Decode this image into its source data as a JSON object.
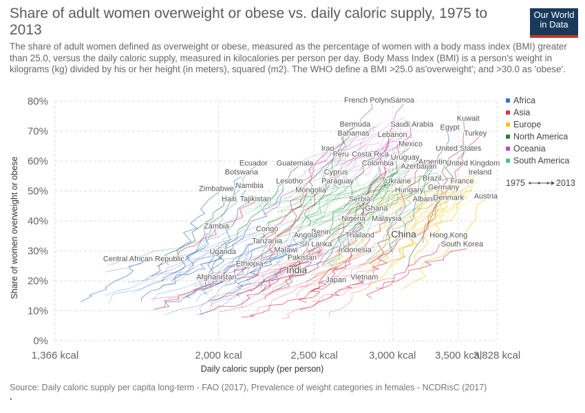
{
  "header": {
    "title": "Share of adult women overweight or obese vs. daily caloric supply, 1975 to 2013",
    "subtitle": "The share of adult women defined as overweight or obese, measured as the percentage of women with a body mass index (BMI) greater than 25.0, versus the daily caloric supply, measured in kilocalories per person per day. Body Mass Index (BMI) is a person's weight in kilograms (kg) divided by his or her height (in meters), squared (m2). The WHO define a BMI >25.0 as'overweight'; and >30.0 as 'obese'.",
    "logo_line1": "Our World",
    "logo_line2": "in Data"
  },
  "footer": {
    "source": "Source: Daily caloric supply per capita long-term - FAO (2017), Prevalence of weight categories in females - NCDRisC (2017)",
    "note": "•"
  },
  "chart_data": {
    "type": "line",
    "title": "Share of adult women overweight or obese vs. daily caloric supply, 1975 to 2013",
    "xlabel": "Daily caloric supply (per person)",
    "ylabel": "Share of women overweight or obese",
    "x_log_scale": true,
    "xlim": [
      1366,
      3828
    ],
    "ylim": [
      0,
      80
    ],
    "x_ticks": [
      {
        "value": 1366,
        "label": "1,366 kcal"
      },
      {
        "value": 2000,
        "label": "2,000 kcal"
      },
      {
        "value": 2500,
        "label": "2,500 kcal"
      },
      {
        "value": 3000,
        "label": "3,000 kcal"
      },
      {
        "value": 3500,
        "label": "3,500 kcal"
      },
      {
        "value": 3828,
        "label": "3,828 kcal"
      }
    ],
    "y_ticks": [
      {
        "value": 0,
        "label": "0%"
      },
      {
        "value": 10,
        "label": "10%"
      },
      {
        "value": 20,
        "label": "20%"
      },
      {
        "value": 30,
        "label": "30%"
      },
      {
        "value": 40,
        "label": "40%"
      },
      {
        "value": 50,
        "label": "50%"
      },
      {
        "value": 60,
        "label": "60%"
      },
      {
        "value": 70,
        "label": "70%"
      },
      {
        "value": 80,
        "label": "80%"
      }
    ],
    "grid": true,
    "legend_placement": "right",
    "legend": [
      {
        "name": "Africa",
        "color": "#3b6fc4"
      },
      {
        "name": "Asia",
        "color": "#d9314f"
      },
      {
        "name": "Europe",
        "color": "#f5c518"
      },
      {
        "name": "North America",
        "color": "#2e7d3a"
      },
      {
        "name": "Oceania",
        "color": "#b84fc7"
      },
      {
        "name": "South America",
        "color": "#4dc27a"
      }
    ],
    "time_legend": {
      "start": "1975",
      "end": "2013"
    },
    "country_labels": [
      {
        "name": "French Polynesia",
        "x": 2870,
        "y": 79.5,
        "region": "Oceania"
      },
      {
        "name": "Samoa",
        "x": 3070,
        "y": 79.5,
        "region": "Oceania"
      },
      {
        "name": "Kuwait",
        "x": 3580,
        "y": 73.5,
        "region": "Asia"
      },
      {
        "name": "Bermuda",
        "x": 2750,
        "y": 71.5,
        "region": "North America"
      },
      {
        "name": "Saudi Arabia",
        "x": 3140,
        "y": 71.5,
        "region": "Asia"
      },
      {
        "name": "Egypt",
        "x": 3430,
        "y": 70.5,
        "region": "Africa"
      },
      {
        "name": "Bahamas",
        "x": 2740,
        "y": 68.5,
        "region": "North America"
      },
      {
        "name": "Lebanon",
        "x": 3000,
        "y": 68.0,
        "region": "Asia"
      },
      {
        "name": "Turkey",
        "x": 3640,
        "y": 68.5,
        "region": "Asia"
      },
      {
        "name": "Mexico",
        "x": 3130,
        "y": 65.0,
        "region": "North America"
      },
      {
        "name": "Iraq",
        "x": 2580,
        "y": 63.5,
        "region": "Asia"
      },
      {
        "name": "United States",
        "x": 3500,
        "y": 63.5,
        "region": "North America"
      },
      {
        "name": "Peru",
        "x": 2660,
        "y": 61.5,
        "region": "South America"
      },
      {
        "name": "Costa Rica",
        "x": 2850,
        "y": 61.5,
        "region": "North America"
      },
      {
        "name": "Uruguay",
        "x": 3090,
        "y": 60.5,
        "region": "South America"
      },
      {
        "name": "Ecuador",
        "x": 2170,
        "y": 58.5,
        "region": "South America"
      },
      {
        "name": "Guatemala",
        "x": 2390,
        "y": 58.5,
        "region": "North America"
      },
      {
        "name": "Colombia",
        "x": 2900,
        "y": 58.5,
        "region": "South America"
      },
      {
        "name": "Argentina",
        "x": 3310,
        "y": 59.0,
        "region": "South America"
      },
      {
        "name": "United Kingdom",
        "x": 3620,
        "y": 58.5,
        "region": "Europe"
      },
      {
        "name": "Azerbaijan",
        "x": 3190,
        "y": 57.5,
        "region": "Asia"
      },
      {
        "name": "Botswana",
        "x": 2110,
        "y": 55.5,
        "region": "Africa"
      },
      {
        "name": "Cyprus",
        "x": 2630,
        "y": 55.5,
        "region": "Asia"
      },
      {
        "name": "Ireland",
        "x": 3680,
        "y": 55.5,
        "region": "Europe"
      },
      {
        "name": "Lesotho",
        "x": 2360,
        "y": 52.5,
        "region": "Africa"
      },
      {
        "name": "Paraguay",
        "x": 2640,
        "y": 52.5,
        "region": "South America"
      },
      {
        "name": "Ukraine",
        "x": 3040,
        "y": 52.5,
        "region": "Europe"
      },
      {
        "name": "Brazil",
        "x": 3290,
        "y": 53.5,
        "region": "South America"
      },
      {
        "name": "France",
        "x": 3530,
        "y": 52.5,
        "region": "Europe"
      },
      {
        "name": "Namibia",
        "x": 2150,
        "y": 51.0,
        "region": "Africa"
      },
      {
        "name": "Zimbabwe",
        "x": 1990,
        "y": 50.0,
        "region": "Africa"
      },
      {
        "name": "Mongolia",
        "x": 2480,
        "y": 49.5,
        "region": "Asia"
      },
      {
        "name": "Hungary",
        "x": 3120,
        "y": 49.5,
        "region": "Europe"
      },
      {
        "name": "Germany",
        "x": 3380,
        "y": 50.5,
        "region": "Europe"
      },
      {
        "name": "Austria",
        "x": 3730,
        "y": 47.5,
        "region": "Europe"
      },
      {
        "name": "Haiti",
        "x": 2050,
        "y": 46.5,
        "region": "North America"
      },
      {
        "name": "Tajikistan",
        "x": 2180,
        "y": 46.5,
        "region": "Asia"
      },
      {
        "name": "Serbia",
        "x": 2780,
        "y": 46.5,
        "region": "Europe"
      },
      {
        "name": "Albania",
        "x": 3240,
        "y": 46.5,
        "region": "Europe"
      },
      {
        "name": "Denmark",
        "x": 3420,
        "y": 47.0,
        "region": "Europe"
      },
      {
        "name": "Ghana",
        "x": 2890,
        "y": 43.5,
        "region": "Africa"
      },
      {
        "name": "Nigeria",
        "x": 2740,
        "y": 40.0,
        "region": "Africa"
      },
      {
        "name": "Malaysia",
        "x": 2960,
        "y": 40.0,
        "region": "Asia"
      },
      {
        "name": "Zambia",
        "x": 1990,
        "y": 37.5,
        "region": "Africa"
      },
      {
        "name": "Congo",
        "x": 2240,
        "y": 36.5,
        "region": "Africa"
      },
      {
        "name": "Benin",
        "x": 2540,
        "y": 35.5,
        "region": "Africa"
      },
      {
        "name": "Angola",
        "x": 2450,
        "y": 34.5,
        "region": "Africa"
      },
      {
        "name": "Thailand",
        "x": 2780,
        "y": 34.5,
        "region": "Asia"
      },
      {
        "name": "China",
        "x": 3080,
        "y": 34.5,
        "region": "Asia"
      },
      {
        "name": "Hong Kong",
        "x": 3420,
        "y": 34.5,
        "region": "Asia"
      },
      {
        "name": "Tanzania",
        "x": 2240,
        "y": 32.5,
        "region": "Africa"
      },
      {
        "name": "Sri Lanka",
        "x": 2510,
        "y": 31.5,
        "region": "Asia"
      },
      {
        "name": "South Korea",
        "x": 3530,
        "y": 31.5,
        "region": "Asia"
      },
      {
        "name": "Malawi",
        "x": 2340,
        "y": 29.5,
        "region": "Africa"
      },
      {
        "name": "Indonesia",
        "x": 2750,
        "y": 29.5,
        "region": "Asia"
      },
      {
        "name": "Uganda",
        "x": 2020,
        "y": 29.0,
        "region": "Africa"
      },
      {
        "name": "Pakistan",
        "x": 2430,
        "y": 27.0,
        "region": "Asia"
      },
      {
        "name": "Central African Republic",
        "x": 1680,
        "y": 26.5,
        "region": "Africa"
      },
      {
        "name": "Ethiopia",
        "x": 2150,
        "y": 25.0,
        "region": "Africa"
      },
      {
        "name": "India",
        "x": 2400,
        "y": 22.5,
        "region": "Asia"
      },
      {
        "name": "Afghanistan",
        "x": 1990,
        "y": 20.5,
        "region": "Asia"
      },
      {
        "name": "Vietnam",
        "x": 2810,
        "y": 20.5,
        "region": "Asia"
      },
      {
        "name": "Japan",
        "x": 2630,
        "y": 19.5,
        "region": "Asia"
      }
    ]
  }
}
